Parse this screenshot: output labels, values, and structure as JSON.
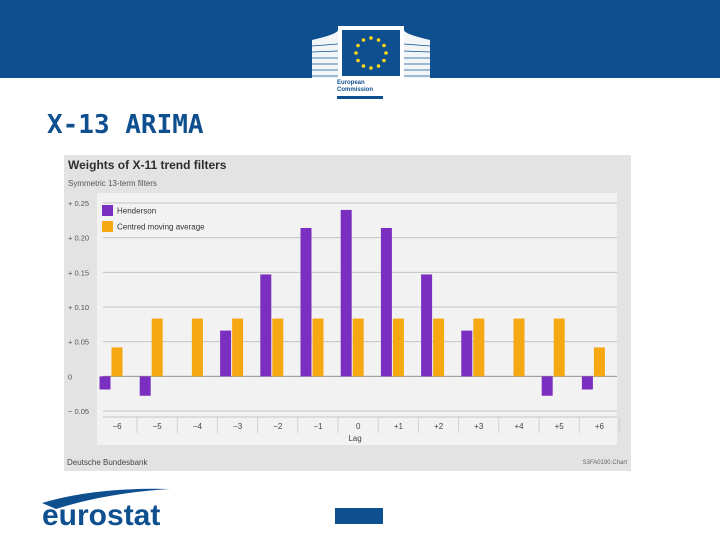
{
  "header": {
    "logo_line1": "European",
    "logo_line2": "Commission"
  },
  "slide": {
    "title": "X-13 ARIMA"
  },
  "footer": {
    "logo_text": "eurostat"
  },
  "colors": {
    "brand_blue": "#0e4f8f",
    "henderson": "#7b2fc0",
    "moving_average": "#f5a811",
    "panel": "#e3e3e3",
    "plot": "#f2f2f2"
  },
  "chart_data": {
    "type": "bar",
    "title": "Weights of X-11 trend filters",
    "subtitle": "Symmetric 13-term filters",
    "xlabel": "Lag",
    "ylabel": "",
    "source": "Deutsche Bundesbank",
    "code": "S3FA0190.Chart",
    "categories": [
      "−6",
      "−5",
      "−4",
      "−3",
      "−2",
      "−1",
      "0",
      "+1",
      "+2",
      "+3",
      "+4",
      "+5",
      "+6"
    ],
    "series": [
      {
        "name": "Henderson",
        "color": "#7b2fc0",
        "values": [
          -0.019,
          -0.028,
          0.0,
          0.066,
          0.147,
          0.214,
          0.24,
          0.214,
          0.147,
          0.066,
          0.0,
          -0.028,
          -0.019
        ]
      },
      {
        "name": "Centred moving average",
        "color": "#f5a811",
        "values": [
          0.0417,
          0.0833,
          0.0833,
          0.0833,
          0.0833,
          0.0833,
          0.0833,
          0.0833,
          0.0833,
          0.0833,
          0.0833,
          0.0833,
          0.0417
        ]
      }
    ],
    "yticks": [
      {
        "value": 0.25,
        "label": "+ 0.25"
      },
      {
        "value": 0.2,
        "label": "+ 0.20"
      },
      {
        "value": 0.15,
        "label": "+ 0.15"
      },
      {
        "value": 0.1,
        "label": "+ 0.10"
      },
      {
        "value": 0.05,
        "label": "+ 0.05"
      },
      {
        "value": 0.0,
        "label": "0"
      },
      {
        "value": -0.05,
        "label": "− 0.05"
      }
    ],
    "ylim": [
      -0.05,
      0.25
    ],
    "legend_position": "top-left",
    "grid": true
  }
}
